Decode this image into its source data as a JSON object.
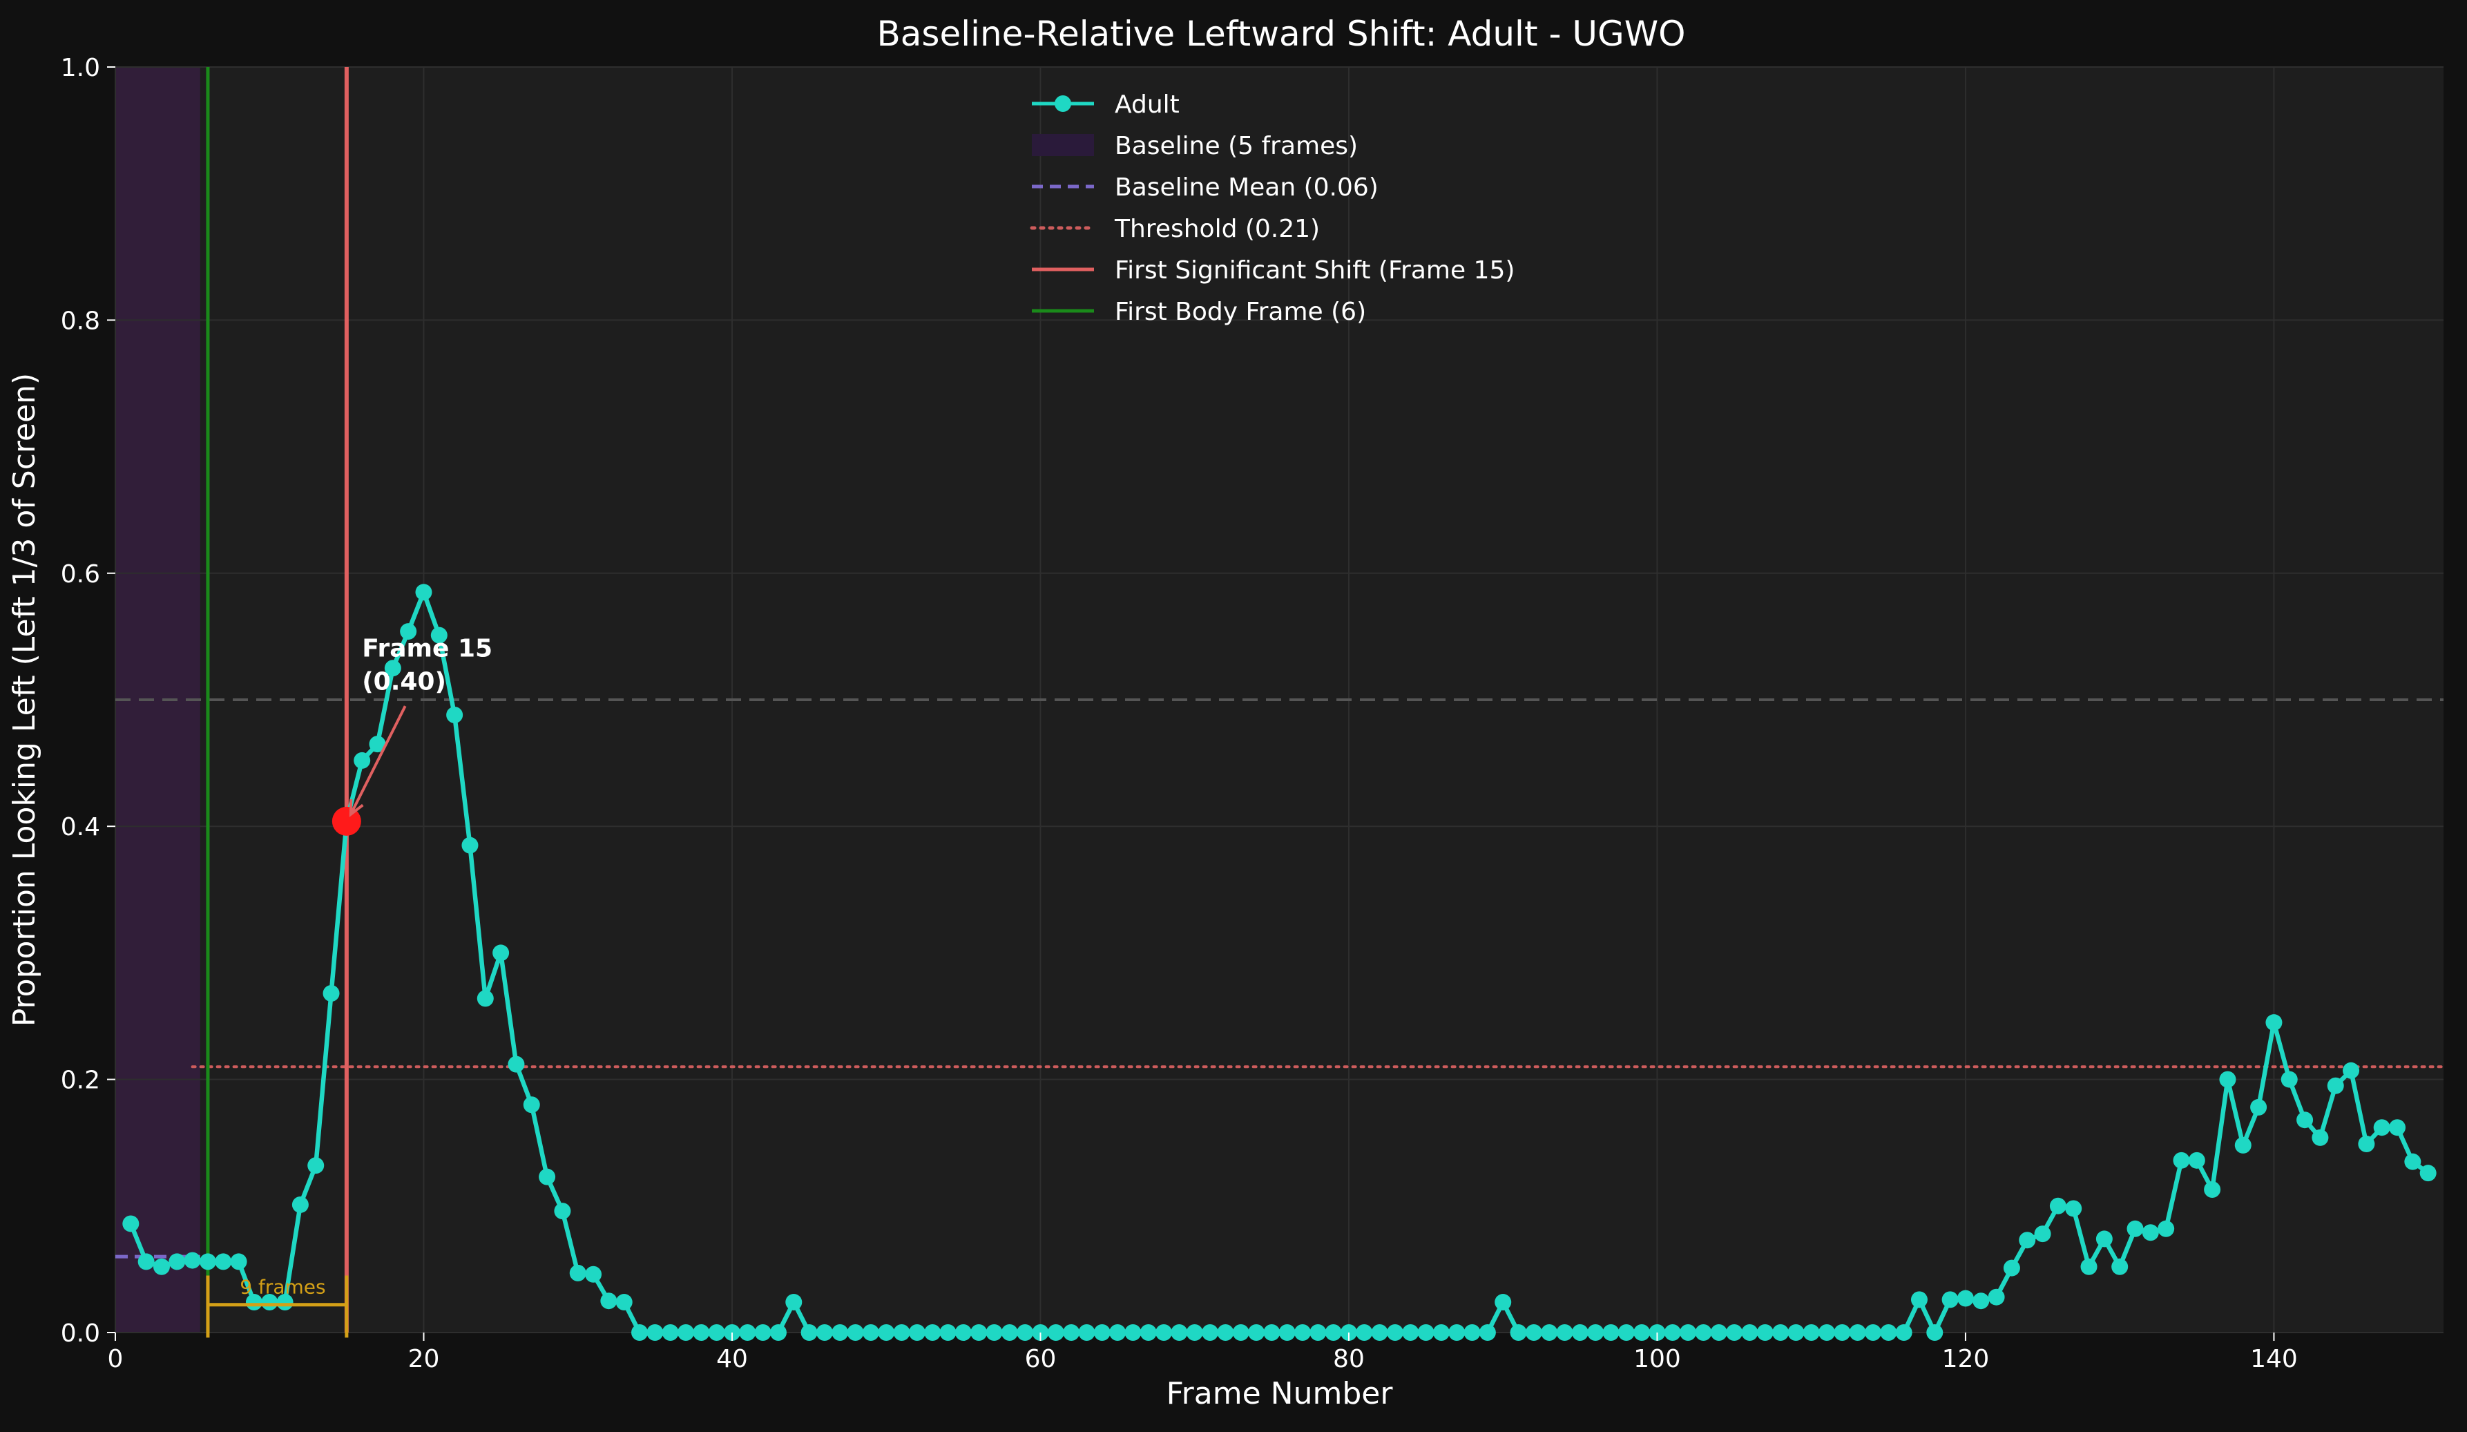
{
  "chart_data": {
    "type": "line",
    "title": "Baseline-Relative Leftward Shift: Adult - UGWO",
    "xlabel": "Frame Number",
    "ylabel": "Proportion Looking Left (Left 1/3 of Screen)",
    "xlim": [
      0,
      151
    ],
    "ylim": [
      0,
      1.0
    ],
    "xticks": [
      "0",
      "20",
      "40",
      "60",
      "80",
      "100",
      "120",
      "140"
    ],
    "yticks": [
      "0.0",
      "0.2",
      "0.4",
      "0.6",
      "0.8",
      "1.0"
    ],
    "grid": true,
    "legend_position": "top-center",
    "series": [
      {
        "name": "Adult",
        "color": "#1fd8c4",
        "x": [
          1,
          2,
          3,
          4,
          5,
          6,
          7,
          8,
          9,
          10,
          11,
          12,
          13,
          14,
          15,
          16,
          17,
          18,
          19,
          20,
          21,
          22,
          23,
          24,
          25,
          26,
          27,
          28,
          29,
          30,
          31,
          32,
          33,
          34,
          35,
          36,
          37,
          38,
          39,
          40,
          41,
          42,
          43,
          44,
          45,
          46,
          47,
          48,
          49,
          50,
          51,
          52,
          53,
          54,
          55,
          56,
          57,
          58,
          59,
          60,
          61,
          62,
          63,
          64,
          65,
          66,
          67,
          68,
          69,
          70,
          71,
          72,
          73,
          74,
          75,
          76,
          77,
          78,
          79,
          80,
          81,
          82,
          83,
          84,
          85,
          86,
          87,
          88,
          89,
          90,
          91,
          92,
          93,
          94,
          95,
          96,
          97,
          98,
          99,
          100,
          101,
          102,
          103,
          104,
          105,
          106,
          107,
          108,
          109,
          110,
          111,
          112,
          113,
          114,
          115,
          116,
          117,
          118,
          119,
          120,
          121,
          122,
          123,
          124,
          125,
          126,
          127,
          128,
          129,
          130,
          131,
          132,
          133,
          134,
          135,
          136,
          137,
          138,
          139,
          140,
          141,
          142,
          143,
          144,
          145,
          146,
          147,
          148,
          149,
          150
        ],
        "y": [
          0.086,
          0.056,
          0.052,
          0.056,
          0.057,
          0.056,
          0.056,
          0.056,
          0.024,
          0.024,
          0.024,
          0.101,
          0.132,
          0.268,
          0.404,
          0.452,
          0.465,
          0.525,
          0.554,
          0.585,
          0.551,
          0.488,
          0.385,
          0.264,
          0.3,
          0.212,
          0.18,
          0.123,
          0.096,
          0.047,
          0.046,
          0.025,
          0.024,
          0.0,
          0.0,
          0.0,
          0.0,
          0.0,
          0.0,
          0.0,
          0.0,
          0.0,
          0.0,
          0.024,
          0.0,
          0.0,
          0.0,
          0.0,
          0.0,
          0.0,
          0.0,
          0.0,
          0.0,
          0.0,
          0.0,
          0.0,
          0.0,
          0.0,
          0.0,
          0.0,
          0.0,
          0.0,
          0.0,
          0.0,
          0.0,
          0.0,
          0.0,
          0.0,
          0.0,
          0.0,
          0.0,
          0.0,
          0.0,
          0.0,
          0.0,
          0.0,
          0.0,
          0.0,
          0.0,
          0.0,
          0.0,
          0.0,
          0.0,
          0.0,
          0.0,
          0.0,
          0.0,
          0.0,
          0.0,
          0.024,
          0.0,
          0.0,
          0.0,
          0.0,
          0.0,
          0.0,
          0.0,
          0.0,
          0.0,
          0.0,
          0.0,
          0.0,
          0.0,
          0.0,
          0.0,
          0.0,
          0.0,
          0.0,
          0.0,
          0.0,
          0.0,
          0.0,
          0.0,
          0.0,
          0.0,
          0.0,
          0.026,
          0.0,
          0.026,
          0.027,
          0.025,
          0.028,
          0.051,
          0.073,
          0.078,
          0.1,
          0.098,
          0.052,
          0.074,
          0.052,
          0.082,
          0.079,
          0.082,
          0.136,
          0.136,
          0.113,
          0.2,
          0.148,
          0.178,
          0.245,
          0.2,
          0.168,
          0.154,
          0.195,
          0.207,
          0.149,
          0.162,
          0.162,
          0.135,
          0.126
        ]
      }
    ],
    "baseline_region": {
      "label": "Baseline (5 frames)",
      "x_start": 0,
      "x_end": 5.5,
      "color": "#4a1f5c"
    },
    "baseline_mean": {
      "label": "Baseline Mean (0.06)",
      "value": 0.06,
      "x_start": 0,
      "x_end": 5.5,
      "color": "#7b68c8"
    },
    "threshold": {
      "label": "Threshold (0.21)",
      "value": 0.21,
      "x_start": 5,
      "x_end": 151,
      "color": "#cd5c5c"
    },
    "reference_line": {
      "value": 0.5,
      "color": "#555555"
    },
    "first_shift": {
      "label": "First Significant Shift (Frame 15)",
      "frame": 15,
      "value": 0.404,
      "color": "#e06060",
      "marker_color": "#ff1a1a"
    },
    "first_body": {
      "label": "First Body Frame (6)",
      "frame": 6,
      "color": "#1a8a1a"
    },
    "annotation": {
      "line1": "Frame 15",
      "line2": "(0.40)",
      "text_x": 16,
      "text_y": 0.51,
      "arrow_tail_x": 18.8,
      "arrow_tail_y": 0.495
    },
    "latency": {
      "label": "9 frames",
      "from": 6,
      "to": 15,
      "y": 0.022,
      "color": "#d4a017"
    }
  },
  "legend": {
    "items": [
      {
        "label": "Adult",
        "kind": "line-marker",
        "color": "#1fd8c4"
      },
      {
        "label": "Baseline (5 frames)",
        "kind": "patch",
        "color": "#2a1a3a"
      },
      {
        "label": "Baseline Mean (0.06)",
        "kind": "dashed",
        "color": "#7b68c8"
      },
      {
        "label": "Threshold (0.21)",
        "kind": "dotted",
        "color": "#cd5c5c"
      },
      {
        "label": "First Significant Shift (Frame 15)",
        "kind": "solid",
        "color": "#e06060"
      },
      {
        "label": "First Body Frame (6)",
        "kind": "solid",
        "color": "#1a8a1a"
      }
    ]
  },
  "colors": {
    "figure_background": "#111111",
    "axes_background": "#1e1e1e",
    "grid": "#2e2e2e",
    "text": "#ffffff"
  }
}
